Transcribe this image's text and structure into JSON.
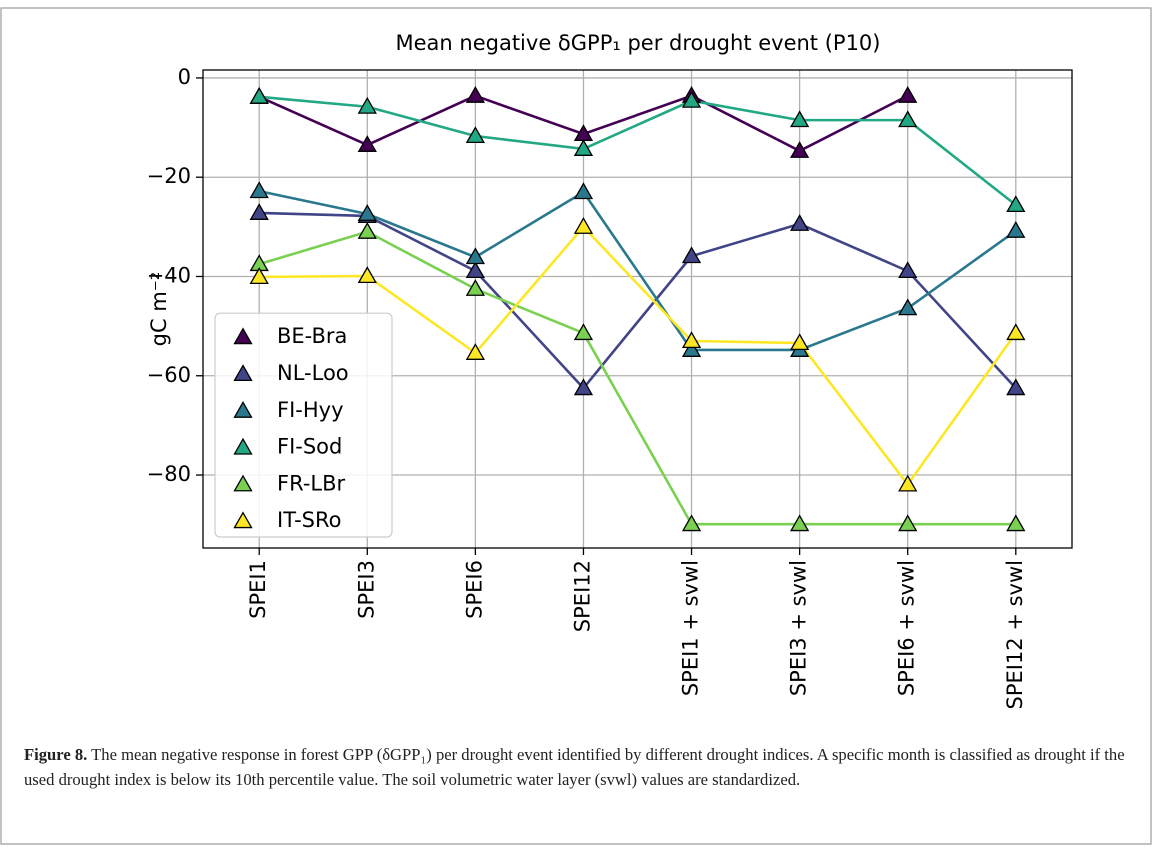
{
  "chart_data": {
    "type": "line",
    "title": "Mean negative δGPP₁ per drought event (P10)",
    "ylabel": "gC m⁻²",
    "categories": [
      "SPEI1",
      "SPEI3",
      "SPEI6",
      "SPEI12",
      "SPEI1 + svwl",
      "SPEI3 + svwl",
      "SPEI6 + svwl",
      "SPEI12 + svwl"
    ],
    "series": [
      {
        "name": "BE-Bra",
        "color": "#440154",
        "values": [
          -3.8,
          -13.5,
          -3.6,
          -11.3,
          -3.6,
          -14.7,
          -3.6,
          null
        ]
      },
      {
        "name": "NL-Loo",
        "color": "#414487",
        "values": [
          -27.2,
          -27.8,
          -38.9,
          -62.5,
          -35.9,
          -29.4,
          -38.9,
          -62.5
        ]
      },
      {
        "name": "FI-Hyy",
        "color": "#2a788e",
        "values": [
          -22.8,
          -27.4,
          -36.1,
          -23.0,
          -54.8,
          -54.8,
          -46.4,
          -30.8
        ]
      },
      {
        "name": "FI-Sod",
        "color": "#22a884",
        "values": [
          -3.8,
          -5.8,
          -11.7,
          -14.3,
          -4.6,
          -8.5,
          -8.5,
          -25.6
        ]
      },
      {
        "name": "FR-LBr",
        "color": "#7ad151",
        "values": [
          -37.5,
          -31.0,
          -42.5,
          -51.4,
          -89.9,
          -89.9,
          -89.9,
          -89.9
        ]
      },
      {
        "name": "IT-SRo",
        "color": "#fde725",
        "values": [
          -40.1,
          -39.9,
          -55.4,
          -30.0,
          -53.0,
          -53.4,
          -81.9,
          -51.4
        ]
      }
    ],
    "ylim": [
      -94.7,
      1.6
    ],
    "yticks": [
      0,
      {
        "value": -20,
        "label": "−20"
      },
      {
        "value": -40,
        "label": "−40"
      },
      {
        "value": -60,
        "label": "−60"
      },
      {
        "value": -80,
        "label": "−80"
      }
    ],
    "grid": true,
    "legend": "lower left"
  },
  "caption": {
    "label": "Figure 8.",
    "text": " The mean negative response in forest GPP (δGPP₁) per drought event identified by different drought indices. A specific month is classified as drought if the used drought index is below its 10th percentile value. The soil volumetric water layer (svwl) values are standardized."
  }
}
